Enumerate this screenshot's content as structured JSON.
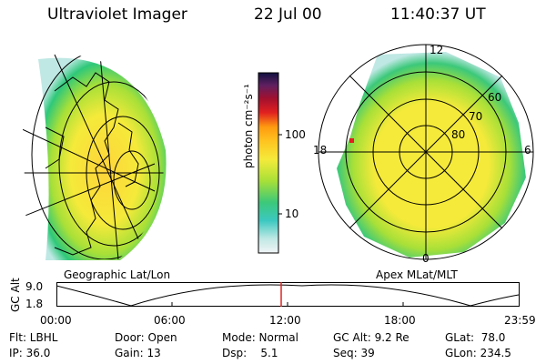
{
  "header": {
    "title": "Ultraviolet Imager",
    "date": "22 Jul 00",
    "time": "11:40:37 UT"
  },
  "left_panel": {
    "caption": "Geographic Lat/Lon"
  },
  "right_panel": {
    "caption": "Apex MLat/MLT",
    "mlt_labels": {
      "top": "12",
      "left": "18",
      "right": "6",
      "bottom": "0"
    },
    "lat_labels": [
      "60",
      "70",
      "80"
    ]
  },
  "colorbar": {
    "label": "photon cm⁻²s⁻¹",
    "ticks": [
      "100",
      "10"
    ],
    "scale": "log"
  },
  "altitude_plot": {
    "ylabel": "GC Alt",
    "yticks": [
      "9.0",
      "1.8"
    ],
    "xticks": [
      "00:00",
      "06:00",
      "12:00",
      "18:00",
      "23:59"
    ],
    "current_time_marker": "11:40",
    "marker_color": "#dd2222"
  },
  "info": {
    "col1": [
      "Flt: LBHL",
      "IP: 36.0"
    ],
    "col2": [
      "Door: Open",
      "Gain: 13"
    ],
    "col3": [
      "Mode: Normal",
      "Dsp:    5.1"
    ],
    "col4": [
      "GC Alt: 9.2 Re",
      "Seq: 39"
    ],
    "col5": [
      "GLat:  78.0",
      "GLon: 234.5"
    ]
  }
}
